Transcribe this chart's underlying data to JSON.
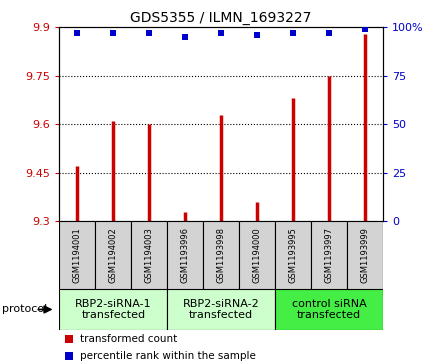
{
  "title": "GDS5355 / ILMN_1693227",
  "samples": [
    "GSM1194001",
    "GSM1194002",
    "GSM1194003",
    "GSM1193996",
    "GSM1193998",
    "GSM1194000",
    "GSM1193995",
    "GSM1193997",
    "GSM1193999"
  ],
  "red_values": [
    9.47,
    9.61,
    9.6,
    9.33,
    9.63,
    9.36,
    9.68,
    9.75,
    9.88
  ],
  "blue_values": [
    97,
    97,
    97,
    95,
    97,
    96,
    97,
    97,
    99
  ],
  "ylim_left": [
    9.3,
    9.9
  ],
  "ylim_right": [
    0,
    100
  ],
  "yticks_left": [
    9.3,
    9.45,
    9.6,
    9.75,
    9.9
  ],
  "yticks_right": [
    0,
    25,
    50,
    75,
    100
  ],
  "groups": [
    {
      "label": "RBP2-siRNA-1\ntransfected",
      "indices": [
        0,
        1,
        2
      ],
      "color": "#ccffcc"
    },
    {
      "label": "RBP2-siRNA-2\ntransfected",
      "indices": [
        3,
        4,
        5
      ],
      "color": "#ccffcc"
    },
    {
      "label": "control siRNA\ntransfected",
      "indices": [
        6,
        7,
        8
      ],
      "color": "#44ee44"
    }
  ],
  "bar_color": "#cc0000",
  "dot_color": "#0000cc",
  "sample_bg_color": "#d3d3d3",
  "protocol_label": "protocol",
  "legend_red": "transformed count",
  "legend_blue": "percentile rank within the sample",
  "title_fontsize": 10,
  "tick_fontsize": 8,
  "sample_fontsize": 6,
  "proto_fontsize": 8,
  "legend_fontsize": 7.5
}
